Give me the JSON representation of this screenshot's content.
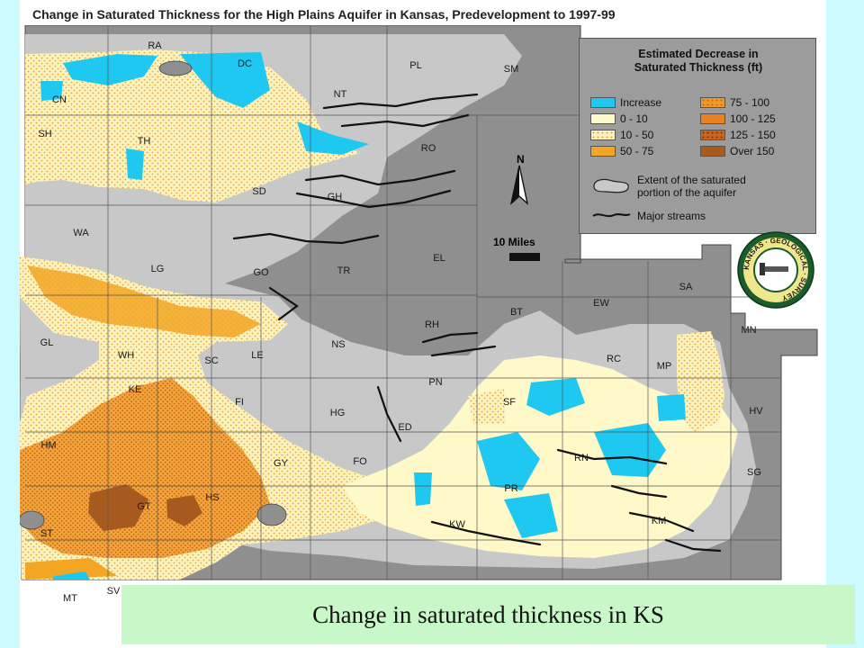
{
  "title": "Change in Saturated Thickness for the High Plains Aquifer in Kansas, Predevelopment to 1997-99",
  "colors": {
    "increase": "#1ec8f0",
    "c0_10": "#fff8c8",
    "c10_50": "#f4dc8a",
    "c50_75": "#f3a623",
    "c75_100": "#ee9a2a",
    "c100_125": "#e8821e",
    "c125_150": "#c8641c",
    "over150": "#a65a1e",
    "outside": "#8f8f8f",
    "extent": "#c8c8c8",
    "background": "#ccfaff",
    "caption_bg": "#c8f8c8"
  },
  "legend": {
    "title_line1": "Estimated Decrease in",
    "title_line2": "Saturated Thickness (ft)",
    "items": [
      {
        "label": "Increase",
        "color": "#1ec8f0"
      },
      {
        "label": "0 - 10",
        "color": "#fff8c8"
      },
      {
        "label": "10 - 50",
        "color": "#f4dc8a"
      },
      {
        "label": "50 - 75",
        "color": "#f3a623"
      },
      {
        "label": "75 - 100",
        "color": "#ee9a2a"
      },
      {
        "label": "100 - 125",
        "color": "#e8821e"
      },
      {
        "label": "125 - 150",
        "color": "#c8641c"
      },
      {
        "label": "Over 150",
        "color": "#a65a1e"
      }
    ],
    "extent_line1": "Extent of the saturated",
    "extent_line2": "portion of the aquifer",
    "streams_label": "Major streams"
  },
  "north_label": "N",
  "scale_label": "10 Miles",
  "seal_text": "KANSAS · GEOLOGICAL · SURVEY",
  "counties": [
    {
      "code": "RA",
      "name": "county-label-ra"
    },
    {
      "code": "DC",
      "name": "county-label-dc"
    },
    {
      "code": "PL",
      "name": "county-label-pl"
    },
    {
      "code": "SM",
      "name": "county-label-sm"
    },
    {
      "code": "CN",
      "name": "county-label-cn"
    },
    {
      "code": "NT",
      "name": "county-label-nt"
    },
    {
      "code": "SH",
      "name": "county-label-sh"
    },
    {
      "code": "TH",
      "name": "county-label-th"
    },
    {
      "code": "RO",
      "name": "county-label-ro"
    },
    {
      "code": "SD",
      "name": "county-label-sd"
    },
    {
      "code": "GH",
      "name": "county-label-gh"
    },
    {
      "code": "WA",
      "name": "county-label-wa"
    },
    {
      "code": "LG",
      "name": "county-label-lg"
    },
    {
      "code": "GO",
      "name": "county-label-go"
    },
    {
      "code": "TR",
      "name": "county-label-tr"
    },
    {
      "code": "EL",
      "name": "county-label-el"
    },
    {
      "code": "EW",
      "name": "county-label-ew"
    },
    {
      "code": "SA",
      "name": "county-label-sa"
    },
    {
      "code": "GL",
      "name": "county-label-gl"
    },
    {
      "code": "WH",
      "name": "county-label-wh"
    },
    {
      "code": "SC",
      "name": "county-label-sc"
    },
    {
      "code": "LE",
      "name": "county-label-le"
    },
    {
      "code": "NS",
      "name": "county-label-ns"
    },
    {
      "code": "RH",
      "name": "county-label-rh"
    },
    {
      "code": "BT",
      "name": "county-label-bt"
    },
    {
      "code": "RC",
      "name": "county-label-rc"
    },
    {
      "code": "MP",
      "name": "county-label-mp"
    },
    {
      "code": "MN",
      "name": "county-label-mn"
    },
    {
      "code": "KE",
      "name": "county-label-ke"
    },
    {
      "code": "FI",
      "name": "county-label-fi"
    },
    {
      "code": "HG",
      "name": "county-label-hg"
    },
    {
      "code": "PN",
      "name": "county-label-pn"
    },
    {
      "code": "SF",
      "name": "county-label-sf"
    },
    {
      "code": "HV",
      "name": "county-label-hv"
    },
    {
      "code": "HM",
      "name": "county-label-hm"
    },
    {
      "code": "ED",
      "name": "county-label-ed"
    },
    {
      "code": "RN",
      "name": "county-label-rn"
    },
    {
      "code": "GY",
      "name": "county-label-gy"
    },
    {
      "code": "FO",
      "name": "county-label-fo"
    },
    {
      "code": "SG",
      "name": "county-label-sg"
    },
    {
      "code": "GT",
      "name": "county-label-gt"
    },
    {
      "code": "HS",
      "name": "county-label-hs"
    },
    {
      "code": "PR",
      "name": "county-label-pr"
    },
    {
      "code": "ST",
      "name": "county-label-st"
    },
    {
      "code": "KW",
      "name": "county-label-kw"
    },
    {
      "code": "KM",
      "name": "county-label-km"
    },
    {
      "code": "MT",
      "name": "county-label-mt"
    },
    {
      "code": "SV",
      "name": "county-label-sv"
    }
  ],
  "caption": "Change in saturated thickness in KS"
}
